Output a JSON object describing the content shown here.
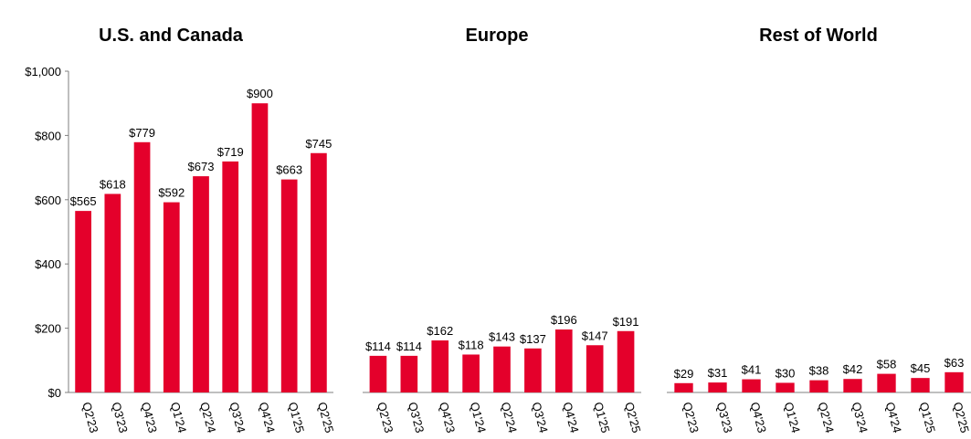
{
  "chart_data": [
    {
      "type": "bar",
      "title": "U.S. and Canada",
      "categories": [
        "Q2'23",
        "Q3'23",
        "Q4'23",
        "Q1'24",
        "Q2'24",
        "Q3'24",
        "Q4'24",
        "Q1'25",
        "Q2'25"
      ],
      "values": [
        565,
        618,
        779,
        592,
        673,
        719,
        900,
        663,
        745
      ],
      "value_labels": [
        "$565",
        "$618",
        "$779",
        "$592",
        "$673",
        "$719",
        "$900",
        "$663",
        "$745"
      ],
      "ylim": [
        0,
        1000
      ],
      "yticks": [
        0,
        200,
        400,
        600,
        800,
        1000
      ],
      "ytick_labels": [
        "$0",
        "$200",
        "$400",
        "$600",
        "$800",
        "$1,000"
      ],
      "xlabel": "",
      "ylabel": "",
      "color": "#e4002b"
    },
    {
      "type": "bar",
      "title": "Europe",
      "categories": [
        "Q2'23",
        "Q3'23",
        "Q4'23",
        "Q1'24",
        "Q2'24",
        "Q3'24",
        "Q4'24",
        "Q1'25",
        "Q2'25"
      ],
      "values": [
        114,
        114,
        162,
        118,
        143,
        137,
        196,
        147,
        191
      ],
      "value_labels": [
        "$114",
        "$114",
        "$162",
        "$118",
        "$143",
        "$137",
        "$196",
        "$147",
        "$191"
      ],
      "ylim": [
        0,
        1000
      ],
      "xlabel": "",
      "ylabel": "",
      "color": "#e4002b"
    },
    {
      "type": "bar",
      "title": "Rest of World",
      "categories": [
        "Q2'23",
        "Q3'23",
        "Q4'23",
        "Q1'24",
        "Q2'24",
        "Q3'24",
        "Q4'24",
        "Q1'25",
        "Q2'25"
      ],
      "values": [
        29,
        31,
        41,
        30,
        38,
        42,
        58,
        45,
        63
      ],
      "value_labels": [
        "$29",
        "$31",
        "$41",
        "$30",
        "$38",
        "$42",
        "$58",
        "$45",
        "$63"
      ],
      "ylim": [
        0,
        1000
      ],
      "xlabel": "",
      "ylabel": "",
      "color": "#e4002b"
    }
  ]
}
